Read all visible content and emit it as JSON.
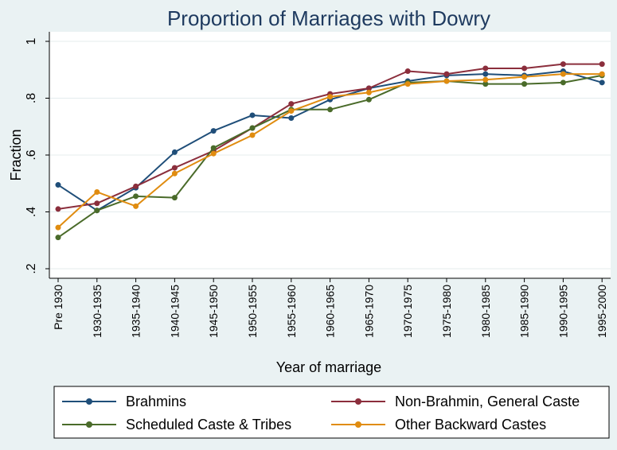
{
  "chart_data": {
    "type": "line",
    "title": "Proportion of Marriages with Dowry",
    "xlabel": "Year of marriage",
    "ylabel": "Fraction",
    "ylim": [
      0.2,
      1.0
    ],
    "yticks": [
      0.2,
      0.4,
      0.6,
      0.8,
      1.0
    ],
    "ytick_labels": [
      ".2",
      ".4",
      ".6",
      ".8",
      "1"
    ],
    "categories": [
      "Pre 1930",
      "1930-1935",
      "1935-1940",
      "1940-1945",
      "1945-1950",
      "1950-1955",
      "1955-1960",
      "1960-1965",
      "1965-1970",
      "1970-1975",
      "1975-1980",
      "1980-1985",
      "1985-1990",
      "1990-1995",
      "1995-2000"
    ],
    "grid": true,
    "legend_position": "bottom",
    "series": [
      {
        "name": "Brahmins",
        "color": "#1f4e79",
        "values": [
          0.495,
          0.405,
          0.485,
          0.61,
          0.685,
          0.74,
          0.73,
          0.795,
          0.835,
          0.86,
          0.88,
          0.885,
          0.88,
          0.895,
          0.855
        ]
      },
      {
        "name": "Non-Brahmin, General Caste",
        "color": "#8b2e3c",
        "values": [
          0.41,
          0.43,
          0.49,
          0.555,
          0.615,
          0.695,
          0.78,
          0.815,
          0.835,
          0.895,
          0.885,
          0.905,
          0.905,
          0.92,
          0.92
        ]
      },
      {
        "name": "Scheduled Caste & Tribes",
        "color": "#4a6b2a",
        "values": [
          0.31,
          0.405,
          0.455,
          0.45,
          0.625,
          0.695,
          0.76,
          0.76,
          0.795,
          0.855,
          0.86,
          0.85,
          0.85,
          0.855,
          0.88
        ]
      },
      {
        "name": "Other Backward Castes",
        "color": "#e08c10",
        "values": [
          0.345,
          0.47,
          0.42,
          0.535,
          0.605,
          0.67,
          0.755,
          0.805,
          0.82,
          0.85,
          0.86,
          0.865,
          0.875,
          0.885,
          0.885
        ]
      }
    ]
  }
}
